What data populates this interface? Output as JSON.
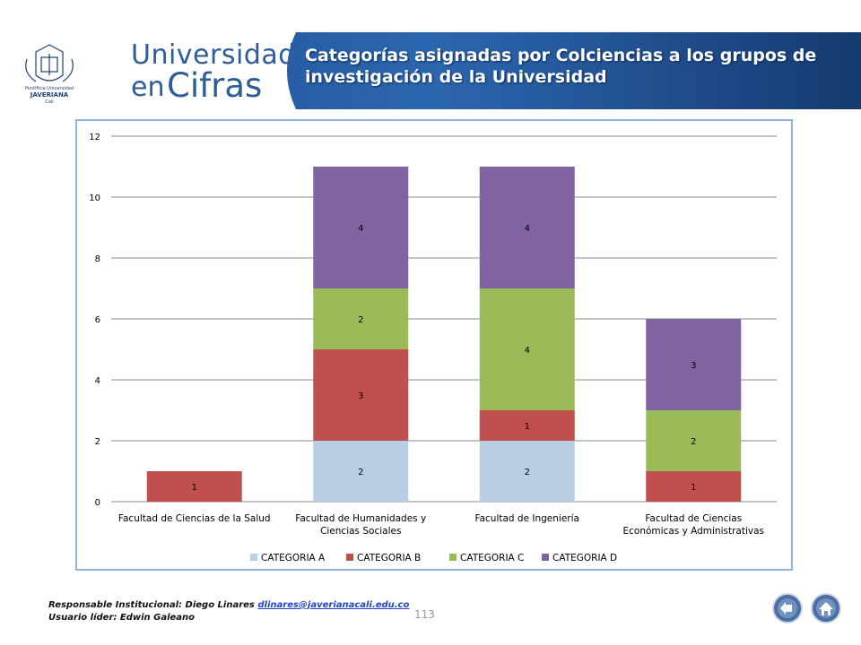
{
  "header": {
    "logo_text_line1": "Pontificia Universidad",
    "logo_text_line2": "JAVERIANA",
    "logo_text_line3": "Cali",
    "brand_line1": "Universidad",
    "brand_line2a": "en",
    "brand_line2b": "Cifras",
    "title": "Categorías asignadas por Colciencias a los grupos de investigación de la Universidad"
  },
  "chart_data": {
    "type": "bar",
    "stacked": true,
    "title": "",
    "xlabel": "",
    "ylabel": "",
    "ylim": [
      0,
      12
    ],
    "yticks": [
      0,
      2,
      4,
      6,
      8,
      10,
      12
    ],
    "grid": true,
    "legend_position": "bottom",
    "categories": [
      [
        "Facultad de Ciencias de la Salud"
      ],
      [
        "Facultad de Humanidades y",
        "Ciencias Sociales"
      ],
      [
        "Facultad de Ingeniería"
      ],
      [
        "Facultad de Ciencias",
        "Económicas y Administrativas"
      ]
    ],
    "series": [
      {
        "name": "CATEGORIA A",
        "color": "#b9cde5",
        "values": [
          0,
          2,
          2,
          0
        ]
      },
      {
        "name": "CATEGORIA B",
        "color": "#c0504d",
        "values": [
          1,
          3,
          1,
          1
        ]
      },
      {
        "name": "CATEGORIA C",
        "color": "#9bbb59",
        "values": [
          0,
          2,
          4,
          2
        ]
      },
      {
        "name": "CATEGORIA D",
        "color": "#8064a2",
        "values": [
          0,
          4,
          4,
          3
        ]
      }
    ]
  },
  "footer": {
    "responsible_label": "Responsable Institucional: Diego Linares",
    "responsible_email": "dlinares@javerianacali.edu.co",
    "leader_label": "Usuario líder: Edwin Galeano",
    "page_number": "113"
  },
  "nav": {
    "back_icon": "back-arrow-icon",
    "home_icon": "home-icon"
  }
}
